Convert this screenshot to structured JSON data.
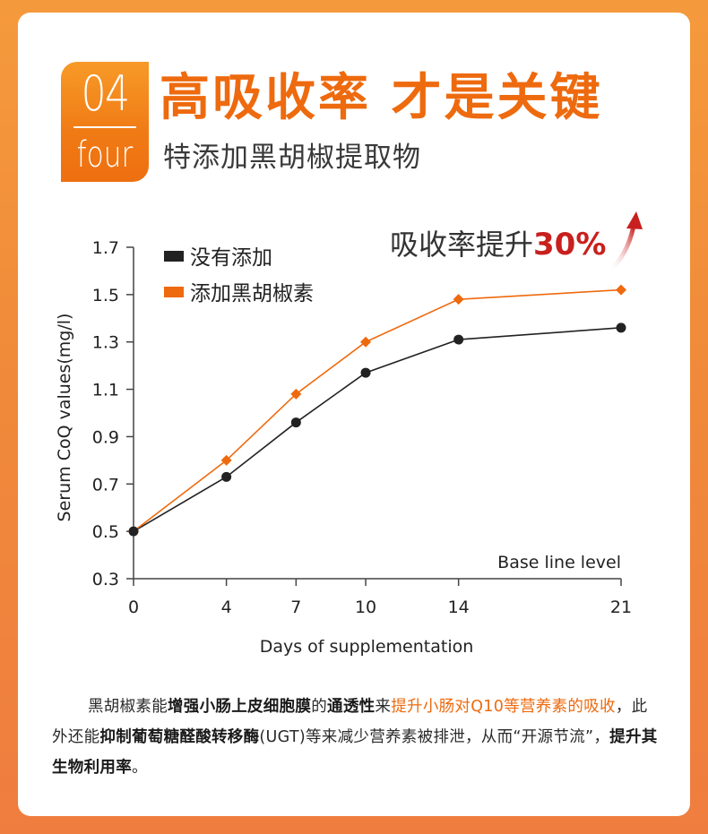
{
  "header": {
    "badge_number": "04",
    "badge_word": "four",
    "title": "高吸收率 才是关键",
    "subtitle": "特添加黑胡椒提取物"
  },
  "colors": {
    "accent_orange": "#ee6a0e",
    "series_dark": "#222222",
    "highlight_red": "#c8201e"
  },
  "callout": {
    "text": "吸收率提升",
    "value": "30%",
    "arrow_icon": "up-arrow-icon"
  },
  "chart_data": {
    "type": "line",
    "x": [
      0,
      4,
      7,
      10,
      14,
      21
    ],
    "xlabel": "Days of supplementation",
    "ylabel": "Serum CoQ values(mg/l)",
    "ylim": [
      0.3,
      1.7
    ],
    "yticks": [
      "0.3",
      "0.5",
      "0.7",
      "0.9",
      "1.1",
      "1.3",
      "1.5",
      "1.7"
    ],
    "xticks": [
      "0",
      "4",
      "7",
      "10",
      "14",
      "21"
    ],
    "grid": false,
    "legend_position": "top-left",
    "annotation": "Base line level",
    "series": [
      {
        "name": "没有添加",
        "color": "#222222",
        "marker": "circle",
        "values": [
          0.5,
          0.73,
          0.96,
          1.17,
          1.31,
          1.36
        ]
      },
      {
        "name": "添加黑胡椒素",
        "color": "#ee6a0e",
        "marker": "diamond",
        "values": [
          0.5,
          0.8,
          1.08,
          1.3,
          1.48,
          1.52
        ]
      }
    ]
  },
  "description": {
    "p1": "黑胡椒素能",
    "b1": "增强小肠上皮细胞膜",
    "p2": "的",
    "b2": "通透性",
    "p3": "来",
    "hl1": "提升小肠对Q10等营养素的吸收",
    "p4": "，此外还能",
    "b3": "抑制葡萄糖醛酸转移酶",
    "p5": "(UGT)等来减少营养素被排泄，从而“开源节流”，",
    "b4": "提升其生物利用率",
    "p6": "。"
  }
}
